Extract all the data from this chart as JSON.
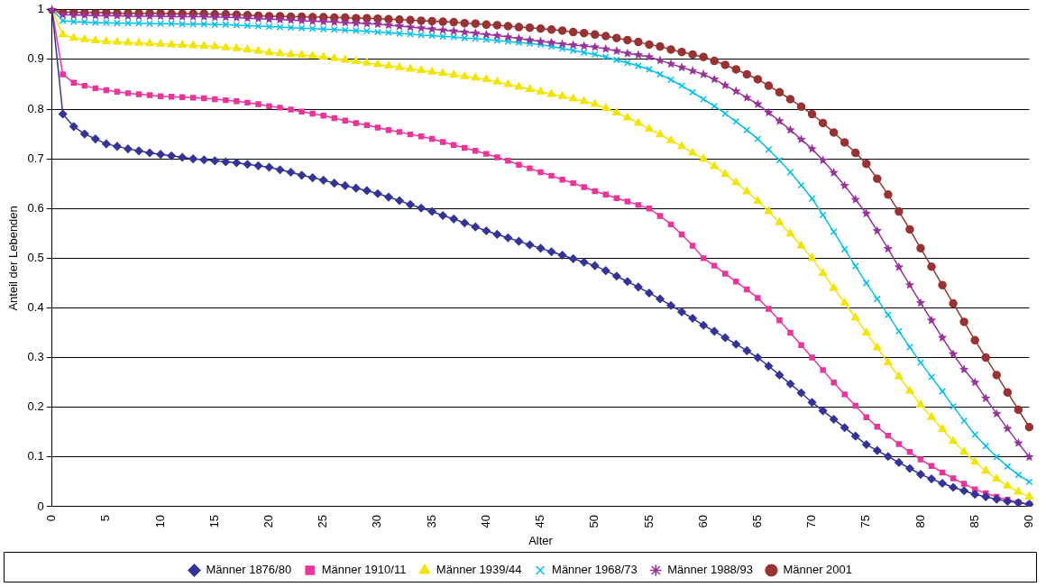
{
  "chart_data": {
    "type": "line",
    "xlabel": "Alter",
    "ylabel": "Anteil der Lebenden",
    "categories": [
      "0",
      null,
      null,
      null,
      null,
      "5",
      null,
      null,
      null,
      null,
      "10",
      null,
      null,
      null,
      null,
      "15",
      null,
      null,
      null,
      null,
      "20",
      null,
      null,
      null,
      null,
      "25",
      null,
      null,
      null,
      null,
      "30",
      null,
      null,
      null,
      null,
      "35",
      null,
      null,
      null,
      null,
      "40",
      null,
      null,
      null,
      null,
      "45",
      null,
      null,
      null,
      null,
      "50",
      null,
      null,
      null,
      null,
      "55",
      null,
      null,
      null,
      null,
      "60",
      null,
      null,
      null,
      null,
      "65",
      null,
      null,
      null,
      null,
      "70",
      null,
      null,
      null,
      null,
      "75",
      null,
      null,
      null,
      null,
      "80",
      null,
      null,
      null,
      null,
      "85",
      null,
      null,
      null,
      null,
      "90"
    ],
    "ylim": [
      0,
      1
    ],
    "yticks": [
      0,
      0.1,
      0.2,
      0.3,
      0.4,
      0.5,
      0.6,
      0.7,
      0.8,
      0.9,
      1
    ],
    "grid": "y",
    "legend": "bottom",
    "line_style": "solid",
    "series": [
      {
        "name": "Männer 1876/80",
        "color": "#333399",
        "marker": "diamond",
        "values": [
          1,
          0.79,
          0.765,
          0.75,
          0.74,
          0.73,
          0.725,
          0.72,
          0.716,
          0.712,
          0.709,
          0.706,
          0.703,
          0.7,
          0.698,
          0.696,
          0.694,
          0.692,
          0.689,
          0.686,
          0.683,
          0.678,
          0.673,
          0.667,
          0.662,
          0.657,
          0.651,
          0.646,
          0.641,
          0.636,
          0.63,
          0.623,
          0.616,
          0.608,
          0.601,
          0.594,
          0.586,
          0.579,
          0.571,
          0.563,
          0.555,
          0.548,
          0.541,
          0.534,
          0.527,
          0.52,
          0.513,
          0.506,
          0.499,
          0.492,
          0.485,
          0.475,
          0.464,
          0.453,
          0.442,
          0.43,
          0.418,
          0.405,
          0.392,
          0.379,
          0.365,
          0.353,
          0.34,
          0.327,
          0.314,
          0.3,
          0.283,
          0.265,
          0.247,
          0.229,
          0.21,
          0.193,
          0.176,
          0.159,
          0.142,
          0.125,
          0.113,
          0.101,
          0.089,
          0.077,
          0.065,
          0.056,
          0.047,
          0.039,
          0.032,
          0.025,
          0.02,
          0.015,
          0.011,
          0.008,
          0.005
        ]
      },
      {
        "name": "Männer 1910/11",
        "color": "#ee3399",
        "marker": "square",
        "values": [
          1,
          0.87,
          0.853,
          0.847,
          0.842,
          0.838,
          0.835,
          0.832,
          0.83,
          0.828,
          0.826,
          0.825,
          0.824,
          0.823,
          0.822,
          0.82,
          0.818,
          0.816,
          0.813,
          0.81,
          0.806,
          0.803,
          0.799,
          0.795,
          0.791,
          0.787,
          0.782,
          0.777,
          0.772,
          0.768,
          0.763,
          0.758,
          0.754,
          0.749,
          0.745,
          0.74,
          0.734,
          0.728,
          0.722,
          0.716,
          0.71,
          0.703,
          0.696,
          0.688,
          0.681,
          0.673,
          0.666,
          0.658,
          0.651,
          0.643,
          0.635,
          0.628,
          0.621,
          0.614,
          0.607,
          0.6,
          0.585,
          0.568,
          0.548,
          0.525,
          0.5,
          0.485,
          0.469,
          0.453,
          0.437,
          0.42,
          0.398,
          0.375,
          0.35,
          0.325,
          0.3,
          0.275,
          0.25,
          0.226,
          0.203,
          0.18,
          0.161,
          0.143,
          0.126,
          0.11,
          0.095,
          0.082,
          0.069,
          0.057,
          0.046,
          0.035,
          0.027,
          0.02,
          0.014,
          0.009,
          0.005
        ]
      },
      {
        "name": "Männer 1939/44",
        "color": "#f2e600",
        "marker": "triangle",
        "values": [
          1,
          0.95,
          0.943,
          0.94,
          0.938,
          0.936,
          0.935,
          0.934,
          0.933,
          0.932,
          0.931,
          0.93,
          0.929,
          0.928,
          0.927,
          0.926,
          0.924,
          0.922,
          0.92,
          0.917,
          0.914,
          0.912,
          0.91,
          0.909,
          0.907,
          0.905,
          0.902,
          0.899,
          0.896,
          0.893,
          0.89,
          0.887,
          0.884,
          0.881,
          0.878,
          0.875,
          0.872,
          0.869,
          0.866,
          0.863,
          0.86,
          0.855,
          0.85,
          0.845,
          0.84,
          0.835,
          0.83,
          0.826,
          0.821,
          0.816,
          0.81,
          0.802,
          0.793,
          0.783,
          0.772,
          0.76,
          0.749,
          0.737,
          0.725,
          0.712,
          0.7,
          0.685,
          0.669,
          0.652,
          0.634,
          0.615,
          0.594,
          0.572,
          0.549,
          0.525,
          0.5,
          0.47,
          0.44,
          0.41,
          0.38,
          0.35,
          0.32,
          0.29,
          0.262,
          0.233,
          0.205,
          0.18,
          0.156,
          0.132,
          0.11,
          0.09,
          0.072,
          0.056,
          0.042,
          0.03,
          0.02
        ]
      },
      {
        "name": "Männer 1968/73",
        "color": "#00c0f0",
        "marker": "cross",
        "values": [
          1,
          0.978,
          0.976,
          0.975,
          0.974,
          0.974,
          0.973,
          0.973,
          0.973,
          0.972,
          0.972,
          0.972,
          0.971,
          0.971,
          0.971,
          0.97,
          0.97,
          0.969,
          0.968,
          0.967,
          0.966,
          0.965,
          0.964,
          0.963,
          0.962,
          0.961,
          0.96,
          0.959,
          0.958,
          0.957,
          0.955,
          0.954,
          0.952,
          0.951,
          0.949,
          0.948,
          0.946,
          0.945,
          0.943,
          0.942,
          0.94,
          0.938,
          0.936,
          0.934,
          0.932,
          0.93,
          0.926,
          0.922,
          0.918,
          0.914,
          0.91,
          0.905,
          0.899,
          0.893,
          0.887,
          0.88,
          0.87,
          0.859,
          0.847,
          0.834,
          0.82,
          0.806,
          0.791,
          0.775,
          0.758,
          0.74,
          0.719,
          0.697,
          0.673,
          0.647,
          0.62,
          0.587,
          0.553,
          0.518,
          0.484,
          0.45,
          0.418,
          0.386,
          0.353,
          0.321,
          0.29,
          0.261,
          0.232,
          0.202,
          0.173,
          0.145,
          0.122,
          0.1,
          0.081,
          0.064,
          0.05
        ]
      },
      {
        "name": "Männer 1988/93",
        "color": "#993399",
        "marker": "star",
        "values": [
          1,
          0.99,
          0.989,
          0.989,
          0.988,
          0.988,
          0.988,
          0.987,
          0.987,
          0.987,
          0.987,
          0.986,
          0.986,
          0.986,
          0.986,
          0.985,
          0.985,
          0.984,
          0.983,
          0.982,
          0.981,
          0.98,
          0.979,
          0.978,
          0.977,
          0.976,
          0.975,
          0.974,
          0.973,
          0.972,
          0.971,
          0.969,
          0.967,
          0.965,
          0.963,
          0.961,
          0.959,
          0.957,
          0.955,
          0.953,
          0.95,
          0.948,
          0.945,
          0.942,
          0.939,
          0.936,
          0.934,
          0.931,
          0.929,
          0.927,
          0.925,
          0.921,
          0.917,
          0.912,
          0.909,
          0.905,
          0.898,
          0.891,
          0.884,
          0.877,
          0.87,
          0.86,
          0.848,
          0.836,
          0.823,
          0.81,
          0.793,
          0.776,
          0.758,
          0.739,
          0.72,
          0.697,
          0.672,
          0.646,
          0.618,
          0.59,
          0.555,
          0.519,
          0.482,
          0.446,
          0.41,
          0.375,
          0.34,
          0.307,
          0.276,
          0.25,
          0.218,
          0.187,
          0.157,
          0.128,
          0.1
        ]
      },
      {
        "name": "Männer 2001",
        "color": "#993333",
        "marker": "circle",
        "values": [
          1,
          0.995,
          0.995,
          0.994,
          0.994,
          0.994,
          0.993,
          0.993,
          0.993,
          0.993,
          0.993,
          0.992,
          0.992,
          0.992,
          0.992,
          0.991,
          0.991,
          0.99,
          0.989,
          0.988,
          0.987,
          0.987,
          0.986,
          0.986,
          0.985,
          0.985,
          0.984,
          0.984,
          0.983,
          0.983,
          0.982,
          0.981,
          0.98,
          0.979,
          0.978,
          0.977,
          0.976,
          0.975,
          0.973,
          0.972,
          0.97,
          0.969,
          0.967,
          0.965,
          0.964,
          0.962,
          0.96,
          0.958,
          0.955,
          0.953,
          0.95,
          0.947,
          0.943,
          0.939,
          0.935,
          0.93,
          0.926,
          0.92,
          0.915,
          0.91,
          0.905,
          0.897,
          0.889,
          0.88,
          0.87,
          0.86,
          0.847,
          0.834,
          0.82,
          0.805,
          0.79,
          0.772,
          0.753,
          0.733,
          0.712,
          0.69,
          0.66,
          0.628,
          0.594,
          0.558,
          0.52,
          0.483,
          0.446,
          0.409,
          0.372,
          0.335,
          0.3,
          0.265,
          0.23,
          0.195,
          0.16
        ]
      }
    ]
  }
}
